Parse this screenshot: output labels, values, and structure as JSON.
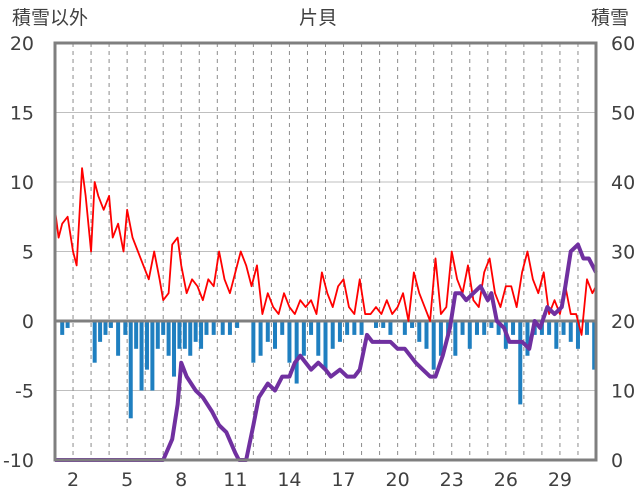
{
  "chart_data": {
    "type": "bar+line",
    "title": "片貝",
    "left_axis_label": "積雪以外",
    "right_axis_label": "積雪",
    "left_ylim": [
      -10,
      20
    ],
    "left_ticks": [
      "20",
      "15",
      "10",
      "5",
      "0",
      "-5",
      "-10"
    ],
    "right_ylim": [
      0,
      60
    ],
    "right_ticks": [
      "60",
      "50",
      "40",
      "30",
      "20",
      "10",
      "0"
    ],
    "x_range": [
      1,
      31
    ],
    "x_tick_labels": [
      "2",
      "5",
      "8",
      "11",
      "14",
      "17",
      "20",
      "23",
      "26",
      "29"
    ],
    "grid": "horizontal solid, vertical dashed",
    "colors": {
      "temperature": "#ff0000",
      "precipitation": "#1f7fc0",
      "snow_depth": "#7030a0",
      "zero_line": "#7f7f7f"
    },
    "temperature": {
      "x": [
        1.0,
        1.2,
        1.4,
        1.7,
        2.0,
        2.2,
        2.5,
        2.7,
        3.0,
        3.2,
        3.4,
        3.7,
        4.0,
        4.2,
        4.5,
        4.8,
        5.0,
        5.3,
        5.6,
        5.9,
        6.2,
        6.5,
        6.8,
        7.0,
        7.3,
        7.5,
        7.8,
        8.0,
        8.3,
        8.6,
        8.9,
        9.2,
        9.5,
        9.8,
        10.1,
        10.4,
        10.7,
        11.0,
        11.3,
        11.6,
        11.9,
        12.2,
        12.5,
        12.8,
        13.1,
        13.4,
        13.7,
        14.0,
        14.3,
        14.6,
        14.9,
        15.2,
        15.5,
        15.8,
        16.1,
        16.4,
        16.7,
        17.0,
        17.3,
        17.6,
        17.9,
        18.2,
        18.5,
        18.8,
        19.1,
        19.4,
        19.7,
        20.0,
        20.3,
        20.6,
        20.9,
        21.2,
        21.5,
        21.8,
        22.1,
        22.4,
        22.7,
        23.0,
        23.3,
        23.6,
        23.9,
        24.2,
        24.5,
        24.8,
        25.1,
        25.4,
        25.7,
        26.0,
        26.3,
        26.6,
        26.9,
        27.2,
        27.5,
        27.8,
        28.1,
        28.4,
        28.7,
        29.0,
        29.3,
        29.6,
        29.9,
        30.2,
        30.5,
        30.8,
        31.0
      ],
      "y": [
        8,
        6,
        7,
        7.5,
        5,
        4,
        11,
        9,
        5,
        10,
        9,
        8,
        9,
        6,
        7,
        5,
        8,
        6,
        5,
        4,
        3,
        5,
        3,
        1.5,
        2,
        5.5,
        6,
        4,
        2,
        3,
        2.5,
        1.5,
        3,
        2.5,
        5,
        3,
        2,
        3.5,
        5,
        4,
        2.5,
        4,
        0.5,
        2,
        1,
        0.5,
        2,
        1,
        0.5,
        1.5,
        1,
        1.5,
        0.5,
        3.5,
        2,
        1,
        2.5,
        3,
        1,
        0.5,
        3,
        0.5,
        0.5,
        1,
        0.5,
        1.5,
        0.5,
        1,
        2,
        0,
        3.5,
        2,
        1,
        0,
        4.5,
        0.5,
        1,
        5,
        3,
        2,
        4,
        1.5,
        1,
        3.5,
        4.5,
        2,
        1,
        2.5,
        2.5,
        1,
        3.5,
        5,
        3,
        2,
        3.5,
        0.5,
        1.5,
        0.5,
        2.5,
        0.5,
        0.5,
        -1,
        3,
        2,
        2.5
      ]
    },
    "precipitation": {
      "x": [
        1.4,
        1.7,
        3.2,
        3.5,
        3.8,
        4.1,
        4.5,
        4.9,
        5.2,
        5.5,
        5.8,
        6.1,
        6.4,
        6.7,
        7.0,
        7.3,
        7.6,
        7.9,
        8.2,
        8.5,
        8.8,
        9.1,
        9.4,
        9.8,
        10.3,
        10.7,
        11.1,
        12.0,
        12.4,
        12.8,
        13.2,
        13.6,
        14.0,
        14.4,
        14.8,
        15.2,
        15.6,
        16.0,
        16.4,
        16.8,
        17.2,
        17.6,
        18.0,
        18.8,
        19.2,
        19.6,
        20.4,
        20.8,
        21.2,
        21.6,
        22.0,
        22.4,
        22.8,
        23.2,
        23.6,
        24.0,
        24.4,
        24.8,
        25.2,
        25.6,
        26.0,
        26.4,
        26.8,
        27.2,
        27.6,
        28.0,
        28.4,
        28.8,
        29.2,
        29.6,
        30.0,
        30.5,
        30.9
      ],
      "y": [
        -1,
        -0.5,
        -3,
        -1.5,
        -1,
        -0.5,
        -2.5,
        -1,
        -7,
        -2,
        -5,
        -3.5,
        -5,
        -2,
        -1,
        -2.5,
        -4,
        -2,
        -2,
        -2.5,
        -1.5,
        -2,
        -1,
        -1,
        -1,
        -1,
        -0.5,
        -3,
        -2.5,
        -1.5,
        -2,
        -1,
        -3,
        -4.5,
        -2.5,
        -1,
        -2.5,
        -3.5,
        -2,
        -1.5,
        -1,
        -1,
        -1,
        -0.5,
        -0.5,
        -1,
        -1,
        -0.5,
        -1.5,
        -2,
        -3.5,
        -2.5,
        -1,
        -2.5,
        -1,
        -2,
        -1,
        -1,
        -0.5,
        -1,
        -2,
        -1,
        -6,
        -2.5,
        -1,
        -1,
        -1,
        -2,
        -1,
        -1.5,
        -2,
        -1,
        -3.5
      ]
    },
    "snow_depth": {
      "x": [
        1.0,
        7.0,
        7.5,
        7.8,
        8.0,
        8.3,
        8.8,
        9.2,
        9.7,
        10.1,
        10.5,
        11.0,
        11.2,
        11.6,
        12.0,
        12.3,
        12.8,
        13.2,
        13.6,
        14.0,
        14.3,
        14.6,
        15.2,
        15.6,
        16.0,
        16.3,
        16.8,
        17.2,
        17.6,
        17.9,
        18.3,
        18.6,
        19.0,
        19.6,
        20.0,
        20.4,
        21.0,
        21.4,
        21.8,
        22.1,
        22.5,
        22.9,
        23.2,
        23.5,
        23.8,
        24.2,
        24.6,
        25.0,
        25.2,
        25.5,
        25.9,
        26.2,
        26.5,
        26.9,
        27.3,
        27.6,
        27.9,
        28.3,
        28.7,
        29.1,
        29.3,
        29.6,
        30.0,
        30.3,
        30.6,
        31.0
      ],
      "y": [
        0,
        0,
        3,
        8,
        14,
        12,
        10,
        9,
        7,
        5,
        4,
        1,
        0,
        0,
        5,
        9,
        11,
        10,
        12,
        12,
        14,
        15,
        13,
        14,
        13,
        12,
        13,
        12,
        12,
        13,
        18,
        17,
        17,
        17,
        16,
        16,
        14,
        13,
        12,
        12,
        15,
        19,
        24,
        24,
        23,
        24,
        25,
        23,
        24,
        20,
        19,
        17,
        17,
        17,
        16,
        20,
        19,
        22,
        21,
        22,
        25,
        30,
        31,
        29,
        29,
        27
      ]
    }
  }
}
